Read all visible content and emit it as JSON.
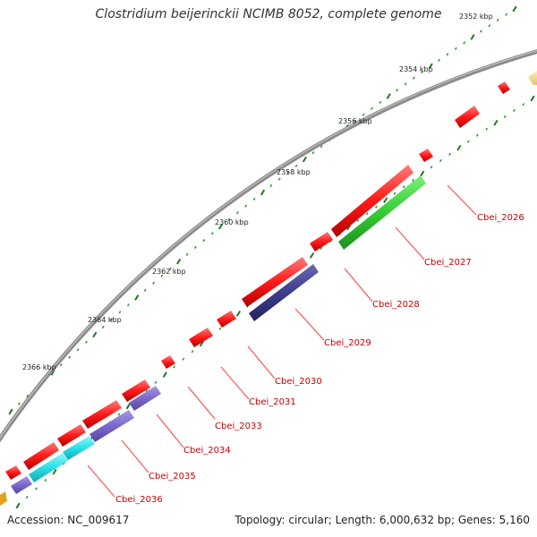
{
  "title": "Clostridium beijerinckii NCIMB 8052, complete genome",
  "accession": "Accession: NC_009617",
  "summary": "Topology: circular; Length: 6,000,632 bp; Genes: 5,160",
  "tick_labels": [
    {
      "kbp": 2352,
      "text": "2352 kbp"
    },
    {
      "kbp": 2354,
      "text": "2354 kbp"
    },
    {
      "kbp": 2356,
      "text": "2356 kbp"
    },
    {
      "kbp": 2358,
      "text": "2358 kbp"
    },
    {
      "kbp": 2360,
      "text": "2360 kbp"
    },
    {
      "kbp": 2362,
      "text": "2362 kbp"
    },
    {
      "kbp": 2364,
      "text": "2364 kbp"
    },
    {
      "kbp": 2366,
      "text": "2366 kbp"
    }
  ],
  "colors": {
    "backbone": "#8c8c8c",
    "cds": "#ff1a1a",
    "gene_blue": "#3c3c8c",
    "gene_green": "#33cc33",
    "gene_purple": "#7b68cc",
    "gene_cyan": "#29e0e8",
    "gene_yellow": "#f0d890",
    "gene_label": "#c80000",
    "tick_major": "#1f7a1f",
    "tick_minor": "#2aa02a"
  },
  "genes": [
    {
      "label": "Cbei_2026"
    },
    {
      "label": "Cbei_2027"
    },
    {
      "label": "Cbei_2028"
    },
    {
      "label": "Cbei_2029"
    },
    {
      "label": "Cbei_2030"
    },
    {
      "label": "Cbei_2031"
    },
    {
      "label": "Cbei_2033"
    },
    {
      "label": "Cbei_2034"
    },
    {
      "label": "Cbei_2035"
    },
    {
      "label": "Cbei_2036"
    }
  ]
}
